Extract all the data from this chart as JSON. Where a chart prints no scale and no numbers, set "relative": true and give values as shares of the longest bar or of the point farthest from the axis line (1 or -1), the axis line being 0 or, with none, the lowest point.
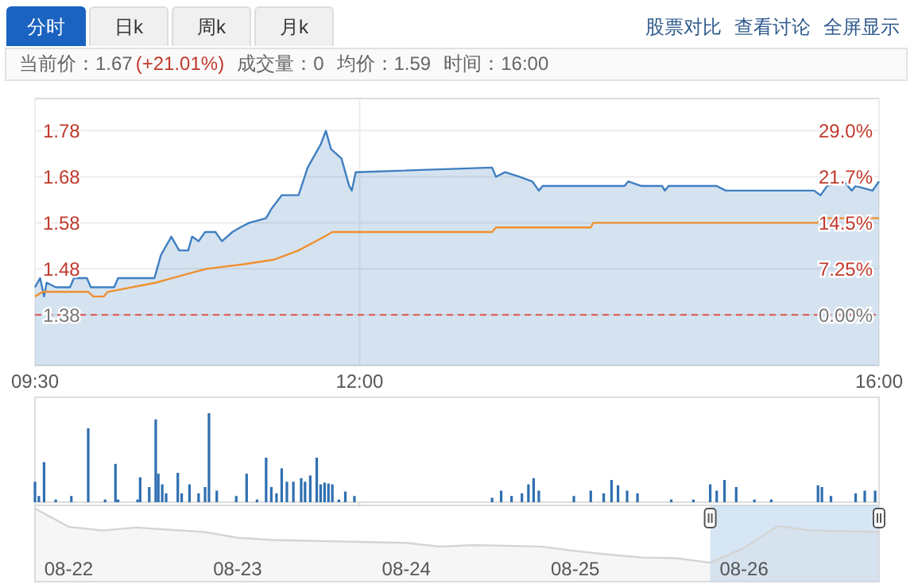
{
  "chart_data": [
    {
      "type": "line",
      "annotations": [
        "分时",
        "日k",
        "周k",
        "月k",
        "股票对比",
        "查看讨论",
        "全屏显示",
        "当前价：1.67",
        "(+21.01%)",
        "成交量：0",
        "均价：1.59",
        "时间：16:00"
      ],
      "xlim": [
        9.5,
        16
      ],
      "xticks": [
        {
          "value": 9.5,
          "label": "09:30"
        },
        {
          "value": 12,
          "label": "12:00"
        },
        {
          "value": 16,
          "label": "16:00"
        }
      ],
      "ylim": [
        1.27,
        1.85
      ],
      "yticks": [
        1.38,
        1.48,
        1.58,
        1.68,
        1.78
      ],
      "y2lim": [
        -7.97,
        34.06
      ],
      "y2ticks": [
        {
          "value": 0,
          "label": "0.00%"
        },
        {
          "value": 7.25,
          "label": "7.25%"
        },
        {
          "value": 14.5,
          "label": "14.5%"
        },
        {
          "value": 21.7,
          "label": "21.7%"
        },
        {
          "value": 29.0,
          "label": "29.0%"
        }
      ],
      "grid": true,
      "ref_lines": [
        {
          "axis": "y",
          "value": 1.38,
          "color": "#e0534a",
          "line_style": "dashed"
        }
      ],
      "series": [
        {
          "type": "area",
          "color": "#3f7fc1",
          "x": [
            9.5,
            9.54,
            9.57,
            9.59,
            9.66,
            9.77,
            9.8,
            9.9,
            9.93,
            10.11,
            10.14,
            10.3,
            10.42,
            10.47,
            10.55,
            10.61,
            10.68,
            10.71,
            10.76,
            10.81,
            10.89,
            10.94,
            11.02,
            11.08,
            11.15,
            11.28,
            11.32,
            11.4,
            11.53,
            11.6,
            11.7,
            11.74,
            11.78,
            11.86,
            11.92,
            11.94,
            11.97,
            13.02,
            13.05,
            13.12,
            13.23,
            13.33,
            13.38,
            13.41,
            14.04,
            14.07,
            14.17,
            14.33,
            14.35,
            14.38,
            14.75,
            14.82,
            15.05,
            15.17,
            15.5,
            15.55,
            15.6,
            15.73,
            15.79,
            15.82,
            15.95,
            16
          ],
          "values": [
            1.44,
            1.46,
            1.42,
            1.45,
            1.44,
            1.44,
            1.46,
            1.46,
            1.44,
            1.44,
            1.46,
            1.46,
            1.46,
            1.51,
            1.55,
            1.52,
            1.52,
            1.55,
            1.54,
            1.56,
            1.56,
            1.54,
            1.56,
            1.57,
            1.58,
            1.59,
            1.61,
            1.64,
            1.64,
            1.7,
            1.75,
            1.78,
            1.74,
            1.72,
            1.66,
            1.65,
            1.69,
            1.7,
            1.68,
            1.69,
            1.68,
            1.67,
            1.65,
            1.66,
            1.66,
            1.67,
            1.66,
            1.66,
            1.65,
            1.66,
            1.66,
            1.65,
            1.65,
            1.65,
            1.65,
            1.64,
            1.66,
            1.67,
            1.65,
            1.66,
            1.65,
            1.67
          ]
        },
        {
          "color": "#f0902f",
          "x": [
            9.5,
            9.56,
            9.91,
            9.95,
            10.03,
            10.06,
            10.43,
            10.56,
            10.82,
            11.11,
            11.34,
            11.53,
            11.73,
            11.79,
            13.02,
            13.05,
            13.78,
            13.8,
            15.53,
            15.55,
            16
          ],
          "values": [
            1.42,
            1.43,
            1.43,
            1.42,
            1.42,
            1.43,
            1.45,
            1.46,
            1.48,
            1.49,
            1.5,
            1.52,
            1.55,
            1.56,
            1.56,
            1.57,
            1.57,
            1.58,
            1.58,
            1.59,
            1.59
          ]
        }
      ]
    },
    {
      "type": "bar",
      "relative": true,
      "tick_labels": false,
      "xlim": [
        9.5,
        16
      ],
      "xticks": [
        {
          "value": 9.5,
          "label": null
        },
        {
          "value": 12,
          "label": null
        },
        {
          "value": 16,
          "label": null
        }
      ],
      "color": "#2f6fb0",
      "x": [
        9.5,
        9.53,
        9.57,
        9.66,
        9.78,
        9.91,
        10.04,
        10.12,
        10.14,
        10.29,
        10.31,
        10.38,
        10.43,
        10.45,
        10.48,
        10.51,
        10.6,
        10.63,
        10.69,
        10.76,
        10.81,
        10.84,
        10.9,
        11.05,
        11.13,
        11.21,
        11.28,
        11.32,
        11.36,
        11.4,
        11.44,
        11.49,
        11.55,
        11.58,
        11.62,
        11.67,
        11.7,
        11.73,
        11.76,
        11.79,
        11.84,
        11.89,
        11.96,
        13.02,
        13.09,
        13.17,
        13.25,
        13.3,
        13.34,
        13.38,
        13.65,
        13.78,
        13.88,
        13.94,
        13.99,
        14.06,
        14.14,
        14.4,
        14.57,
        14.7,
        14.75,
        14.81,
        14.9,
        15.04,
        15.17,
        15.53,
        15.56,
        15.63,
        15.82,
        15.89,
        15.97
      ],
      "values": [
        0.23,
        0.07,
        0.45,
        0.03,
        0.07,
        0.83,
        0.03,
        0.43,
        0.03,
        0.03,
        0.28,
        0.17,
        0.93,
        0.32,
        0.2,
        0.1,
        0.33,
        0.1,
        0.2,
        0.1,
        0.17,
        1,
        0.13,
        0.07,
        0.32,
        0.03,
        0.5,
        0.17,
        0.1,
        0.38,
        0.23,
        0.23,
        0.27,
        0.23,
        0.3,
        0.5,
        0.2,
        0.22,
        0.21,
        0.2,
        0.03,
        0.12,
        0.07,
        0.05,
        0.13,
        0.07,
        0.1,
        0.2,
        0.27,
        0.13,
        0.07,
        0.13,
        0.1,
        0.25,
        0.19,
        0.13,
        0.1,
        0.03,
        0.03,
        0.2,
        0.13,
        0.25,
        0.17,
        0.03,
        0.03,
        0.19,
        0.17,
        0.07,
        0.1,
        0.13,
        0.13
      ]
    },
    {
      "type": "area",
      "relative": true,
      "color": "#d4d4d4",
      "categories": [
        null,
        "08-22",
        null,
        null,
        null,
        null,
        "08-23",
        null,
        null,
        null,
        null,
        "08-24",
        null,
        null,
        null,
        null,
        "08-25",
        null,
        null,
        null,
        null,
        "08-26",
        null,
        null,
        null,
        null
      ],
      "values": [
        1.0,
        0.75,
        0.7,
        0.74,
        0.71,
        0.68,
        0.6,
        0.57,
        0.56,
        0.55,
        0.54,
        0.53,
        0.48,
        0.5,
        0.49,
        0.48,
        0.42,
        0.37,
        0.33,
        0.32,
        0.26,
        0.46,
        0.76,
        0.7,
        0.69,
        0.68
      ]
    }
  ]
}
